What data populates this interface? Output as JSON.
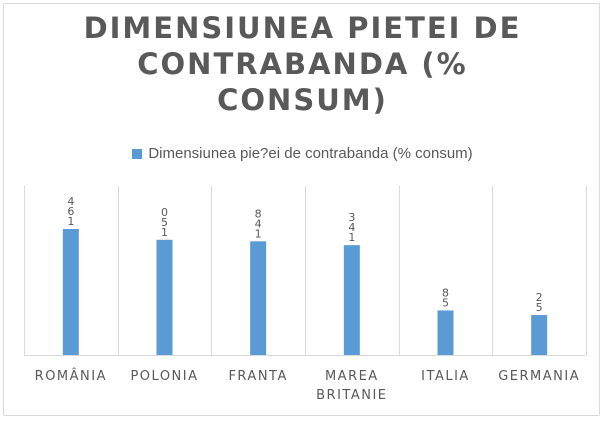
{
  "chart_data": {
    "type": "bar",
    "title_lines": [
      "DIMENSIUNEA PIETEI DE",
      "CONTRABANDA (%",
      "CONSUM)"
    ],
    "legend_label": "Dimensiunea pie?ei de contrabanda (% consum)",
    "categories": [
      [
        "ROMÂNIA"
      ],
      [
        "POLONIA"
      ],
      [
        "FRANTA"
      ],
      [
        "MAREA",
        "BRITANIE"
      ],
      [
        "ITALIA"
      ],
      [
        "GERMANIA"
      ]
    ],
    "series": [
      {
        "values": [
          16.4,
          15.0,
          14.8,
          14.3,
          5.8,
          5.2
        ],
        "data_labels": [
          [
            "4",
            "6",
            "1"
          ],
          [
            "0",
            "5",
            "1"
          ],
          [
            "8",
            "4",
            "1"
          ],
          [
            "3",
            "4",
            "1"
          ],
          [
            "8",
            "5"
          ],
          [
            "2",
            "5"
          ]
        ]
      }
    ],
    "ylim": [
      0,
      22
    ],
    "bar_color": "#5b9bd5",
    "grid": "vertical category separators",
    "legend_position": "top"
  }
}
